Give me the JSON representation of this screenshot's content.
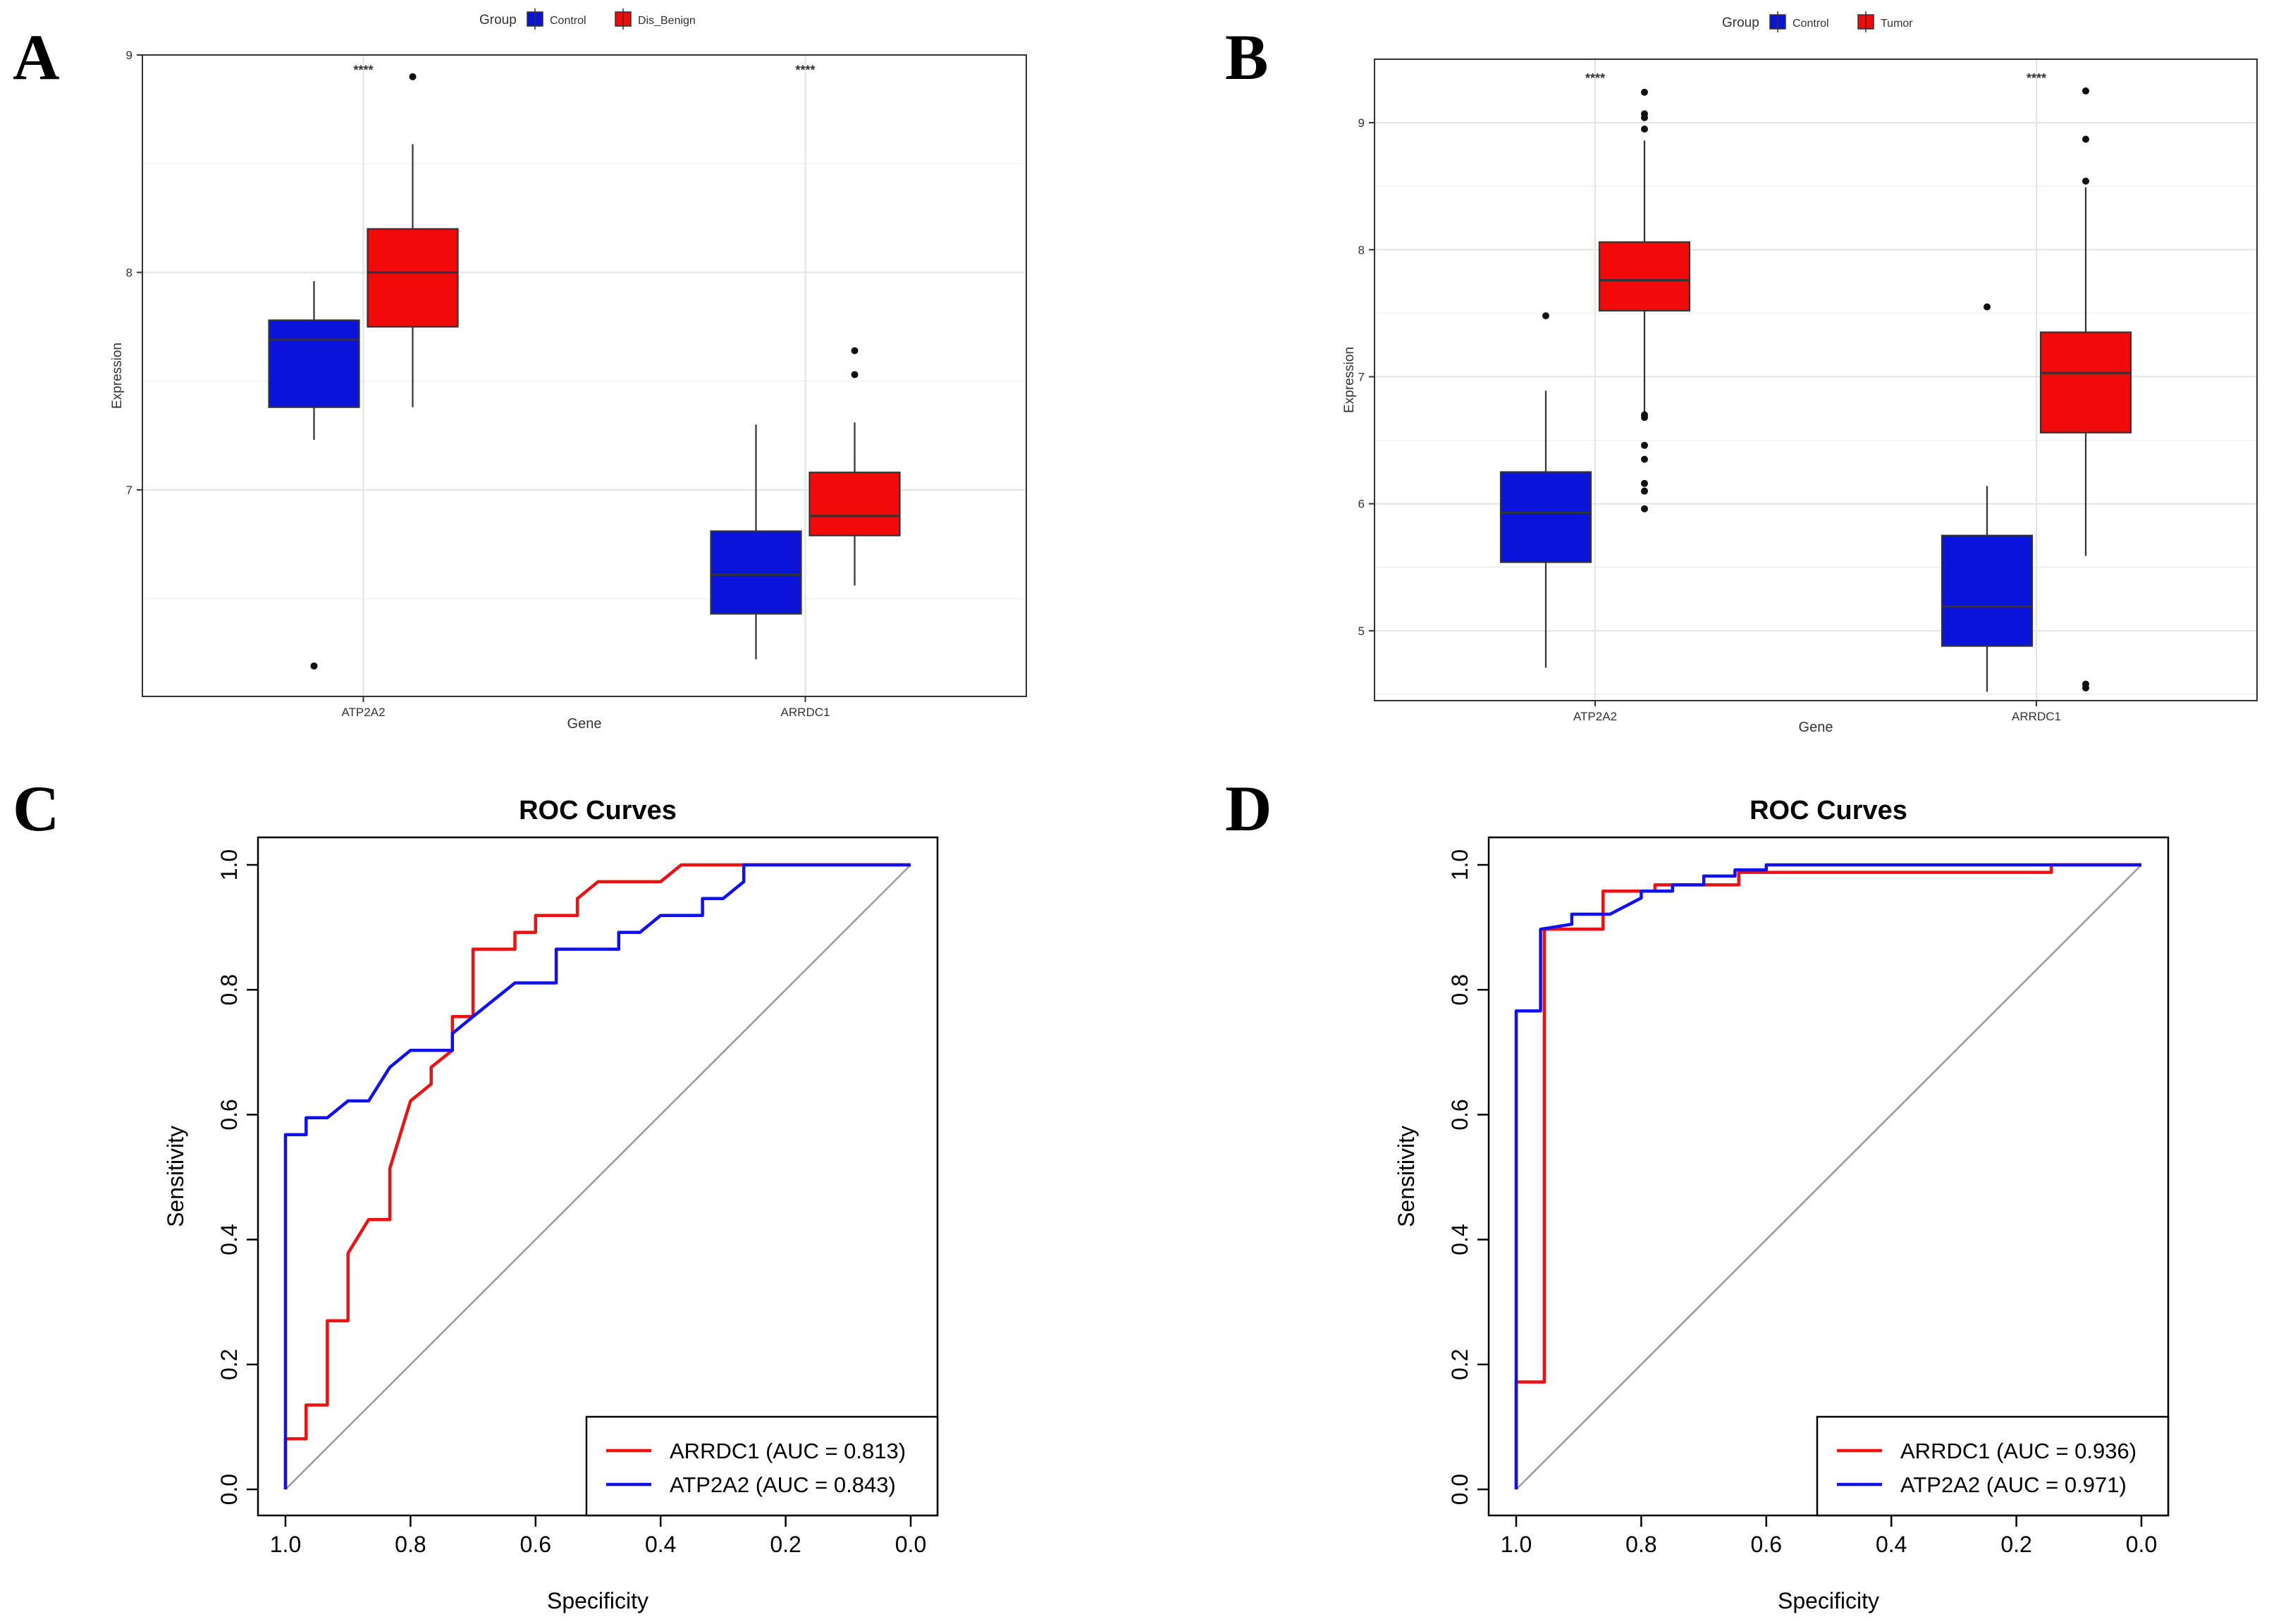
{
  "chart_data": [
    {
      "panel": "A",
      "type": "box",
      "title": "",
      "xlabel": "Gene",
      "ylabel": "Expression",
      "categories": [
        "ATP2A2",
        "ARRDC1"
      ],
      "legend": {
        "title": "Group",
        "position": "top",
        "entries": [
          "Control",
          "Dis_Benign"
        ]
      },
      "ylim": [
        6.05,
        9.0
      ],
      "yticks": [
        7,
        8,
        9
      ],
      "grid": true,
      "colors": {
        "Control": "#0a14d8",
        "Dis_Benign": "#f20a0a"
      },
      "significance": [
        "****",
        "****"
      ],
      "sig_y": 8.93,
      "series": [
        {
          "name": "Control",
          "boxes": [
            {
              "category": "ATP2A2",
              "whisker_low": 7.23,
              "q1": 7.38,
              "median": 7.69,
              "q3": 7.78,
              "whisker_high": 7.96,
              "outliers": [
                6.19
              ]
            },
            {
              "category": "ARRDC1",
              "whisker_low": 6.22,
              "q1": 6.43,
              "median": 6.61,
              "q3": 6.81,
              "whisker_high": 7.3,
              "outliers": []
            }
          ]
        },
        {
          "name": "Dis_Benign",
          "boxes": [
            {
              "category": "ATP2A2",
              "whisker_low": 7.38,
              "q1": 7.75,
              "median": 8.0,
              "q3": 8.2,
              "whisker_high": 8.59,
              "outliers": [
                8.9
              ]
            },
            {
              "category": "ARRDC1",
              "whisker_low": 6.56,
              "q1": 6.79,
              "median": 6.88,
              "q3": 7.08,
              "whisker_high": 7.31,
              "outliers": [
                7.53,
                7.64
              ]
            }
          ]
        }
      ]
    },
    {
      "panel": "B",
      "type": "box",
      "title": "",
      "xlabel": "Gene",
      "ylabel": "Expression",
      "categories": [
        "ATP2A2",
        "ARRDC1"
      ],
      "legend": {
        "title": "Group",
        "position": "top",
        "entries": [
          "Control",
          "Tumor"
        ]
      },
      "ylim": [
        4.45,
        9.5
      ],
      "yticks": [
        5,
        6,
        7,
        8,
        9
      ],
      "grid": true,
      "colors": {
        "Control": "#0a14d8",
        "Tumor": "#f20a0a"
      },
      "significance": [
        "****",
        "****"
      ],
      "sig_y": 9.35,
      "series": [
        {
          "name": "Control",
          "boxes": [
            {
              "category": "ATP2A2",
              "whisker_low": 4.71,
              "q1": 5.54,
              "median": 5.93,
              "q3": 6.25,
              "whisker_high": 6.89,
              "outliers": [
                7.48
              ]
            },
            {
              "category": "ARRDC1",
              "whisker_low": 4.52,
              "q1": 4.88,
              "median": 5.19,
              "q3": 5.75,
              "whisker_high": 6.14,
              "outliers": [
                7.55
              ]
            }
          ]
        },
        {
          "name": "Tumor",
          "boxes": [
            {
              "category": "ATP2A2",
              "whisker_low": 6.72,
              "q1": 7.52,
              "median": 7.76,
              "q3": 8.06,
              "whisker_high": 8.86,
              "outliers": [
                5.96,
                6.1,
                6.16,
                6.35,
                6.46,
                6.68,
                6.7,
                8.95,
                9.04,
                9.07,
                9.24
              ]
            },
            {
              "category": "ARRDC1",
              "whisker_low": 5.59,
              "q1": 6.56,
              "median": 7.03,
              "q3": 7.35,
              "whisker_high": 8.49,
              "outliers": [
                4.55,
                4.58,
                8.54,
                8.87,
                9.25
              ]
            }
          ]
        }
      ]
    },
    {
      "panel": "C",
      "type": "line",
      "title": "ROC Curves",
      "xlabel": "Specificity",
      "ylabel": "Sensitivity",
      "xlim": [
        1.0,
        0.0
      ],
      "ylim": [
        0.0,
        1.0
      ],
      "xticks": [
        "1.0",
        "0.8",
        "0.6",
        "0.4",
        "0.2",
        "0.0"
      ],
      "yticks": [
        "0.0",
        "0.2",
        "0.4",
        "0.6",
        "0.8",
        "1.0"
      ],
      "legend": {
        "position": "bottom-right",
        "entries": [
          "ARRDC1 (AUC = 0.813)",
          "ATP2A2 (AUC = 0.843)"
        ]
      },
      "series": [
        {
          "name": "ARRDC1 (AUC = 0.813)",
          "color": "#ee1111",
          "points": [
            [
              1.0,
              0.0
            ],
            [
              1.0,
              0.081
            ],
            [
              0.967,
              0.081
            ],
            [
              0.967,
              0.135
            ],
            [
              0.933,
              0.135
            ],
            [
              0.933,
              0.27
            ],
            [
              0.9,
              0.27
            ],
            [
              0.9,
              0.378
            ],
            [
              0.867,
              0.432
            ],
            [
              0.833,
              0.432
            ],
            [
              0.833,
              0.514
            ],
            [
              0.8,
              0.622
            ],
            [
              0.767,
              0.649
            ],
            [
              0.767,
              0.676
            ],
            [
              0.733,
              0.703
            ],
            [
              0.733,
              0.757
            ],
            [
              0.7,
              0.757
            ],
            [
              0.7,
              0.865
            ],
            [
              0.633,
              0.865
            ],
            [
              0.633,
              0.892
            ],
            [
              0.6,
              0.892
            ],
            [
              0.6,
              0.919
            ],
            [
              0.533,
              0.919
            ],
            [
              0.533,
              0.946
            ],
            [
              0.5,
              0.973
            ],
            [
              0.4,
              0.973
            ],
            [
              0.367,
              1.0
            ],
            [
              0.25,
              1.0
            ],
            [
              0.0,
              1.0
            ]
          ]
        },
        {
          "name": "ATP2A2 (AUC = 0.843)",
          "color": "#1111ee",
          "points": [
            [
              1.0,
              0.0
            ],
            [
              1.0,
              0.568
            ],
            [
              0.967,
              0.568
            ],
            [
              0.967,
              0.595
            ],
            [
              0.933,
              0.595
            ],
            [
              0.9,
              0.622
            ],
            [
              0.867,
              0.622
            ],
            [
              0.833,
              0.676
            ],
            [
              0.8,
              0.703
            ],
            [
              0.733,
              0.703
            ],
            [
              0.733,
              0.73
            ],
            [
              0.7,
              0.757
            ],
            [
              0.633,
              0.811
            ],
            [
              0.567,
              0.811
            ],
            [
              0.567,
              0.865
            ],
            [
              0.467,
              0.865
            ],
            [
              0.467,
              0.892
            ],
            [
              0.433,
              0.892
            ],
            [
              0.4,
              0.919
            ],
            [
              0.333,
              0.919
            ],
            [
              0.333,
              0.946
            ],
            [
              0.3,
              0.946
            ],
            [
              0.267,
              0.973
            ],
            [
              0.267,
              1.0
            ],
            [
              0.0,
              1.0
            ]
          ]
        }
      ]
    },
    {
      "panel": "D",
      "type": "line",
      "title": "ROC Curves",
      "xlabel": "Specificity",
      "ylabel": "Sensitivity",
      "xlim": [
        1.0,
        0.0
      ],
      "ylim": [
        0.0,
        1.0
      ],
      "xticks": [
        "1.0",
        "0.8",
        "0.6",
        "0.4",
        "0.2",
        "0.0"
      ],
      "yticks": [
        "0.0",
        "0.2",
        "0.4",
        "0.6",
        "0.8",
        "1.0"
      ],
      "legend": {
        "position": "bottom-right",
        "entries": [
          "ARRDC1 (AUC = 0.936)",
          "ATP2A2 (AUC = 0.971)"
        ]
      },
      "series": [
        {
          "name": "ARRDC1 (AUC = 0.936)",
          "color": "#ee1111",
          "points": [
            [
              1.0,
              0.0
            ],
            [
              1.0,
              0.172
            ],
            [
              0.955,
              0.172
            ],
            [
              0.955,
              0.897
            ],
            [
              0.861,
              0.897
            ],
            [
              0.861,
              0.958
            ],
            [
              0.778,
              0.958
            ],
            [
              0.778,
              0.968
            ],
            [
              0.644,
              0.968
            ],
            [
              0.644,
              0.988
            ],
            [
              0.144,
              0.988
            ],
            [
              0.144,
              1.0
            ],
            [
              0.0,
              1.0
            ]
          ]
        },
        {
          "name": "ATP2A2 (AUC = 0.971)",
          "color": "#1111ee",
          "points": [
            [
              1.0,
              0.0
            ],
            [
              1.0,
              0.766
            ],
            [
              0.961,
              0.766
            ],
            [
              0.961,
              0.897
            ],
            [
              0.911,
              0.905
            ],
            [
              0.911,
              0.921
            ],
            [
              0.85,
              0.921
            ],
            [
              0.8,
              0.947
            ],
            [
              0.8,
              0.958
            ],
            [
              0.75,
              0.958
            ],
            [
              0.75,
              0.968
            ],
            [
              0.7,
              0.968
            ],
            [
              0.7,
              0.982
            ],
            [
              0.65,
              0.982
            ],
            [
              0.65,
              0.992
            ],
            [
              0.6,
              0.992
            ],
            [
              0.6,
              1.0
            ],
            [
              0.0,
              1.0
            ]
          ]
        }
      ]
    }
  ]
}
